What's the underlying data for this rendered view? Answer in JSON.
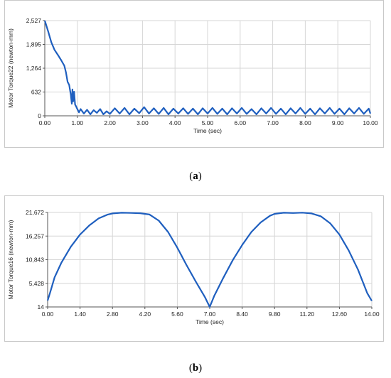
{
  "captions": {
    "a": {
      "open": "(",
      "letter": "a",
      "close": ")"
    },
    "b": {
      "open": "(",
      "letter": "b",
      "close": ")"
    }
  },
  "colors": {
    "line": "#1f5fbf",
    "grid": "#d6d6d6",
    "axis": "#555555"
  },
  "chart_data": [
    {
      "type": "line",
      "title": "",
      "xlabel": "Time (sec)",
      "ylabel": "Motor Torque22 (newton-mm)",
      "xlim": [
        0,
        10
      ],
      "ylim": [
        0,
        2527
      ],
      "x_ticks": [
        "0.00",
        "1.00",
        "2.00",
        "3.00",
        "4.00",
        "5.00",
        "6.00",
        "7.00",
        "8.00",
        "9.00",
        "10.00"
      ],
      "y_ticks": [
        "0",
        "632",
        "1,264",
        "1,895",
        "2,527"
      ],
      "grid": true,
      "x": [
        0.0,
        0.1,
        0.2,
        0.3,
        0.4,
        0.5,
        0.6,
        0.65,
        0.7,
        0.75,
        0.8,
        0.83,
        0.85,
        0.87,
        0.9,
        0.93,
        0.96,
        1.0,
        1.05,
        1.1,
        1.2,
        1.3,
        1.4,
        1.5,
        1.6,
        1.7,
        1.8,
        1.9,
        2.0,
        2.15,
        2.3,
        2.45,
        2.6,
        2.75,
        2.9,
        3.05,
        3.2,
        3.35,
        3.5,
        3.65,
        3.8,
        3.95,
        4.1,
        4.25,
        4.4,
        4.55,
        4.7,
        4.85,
        5.0,
        5.15,
        5.3,
        5.45,
        5.6,
        5.75,
        5.9,
        6.05,
        6.2,
        6.35,
        6.5,
        6.65,
        6.8,
        6.95,
        7.1,
        7.25,
        7.4,
        7.55,
        7.7,
        7.85,
        8.0,
        8.15,
        8.3,
        8.45,
        8.6,
        8.75,
        8.9,
        9.05,
        9.2,
        9.35,
        9.5,
        9.65,
        9.8,
        9.95,
        10.0
      ],
      "series": [
        {
          "values": [
            2527,
            2250,
            1950,
            1750,
            1620,
            1480,
            1330,
            1150,
            900,
            820,
            560,
            320,
            700,
            380,
            640,
            300,
            250,
            180,
            90,
            180,
            60,
            160,
            40,
            150,
            80,
            180,
            40,
            120,
            50,
            200,
            60,
            210,
            40,
            190,
            70,
            230,
            60,
            200,
            50,
            210,
            40,
            190,
            60,
            200,
            50,
            190,
            40,
            200,
            60,
            210,
            50,
            190,
            40,
            200,
            60,
            210,
            50,
            180,
            40,
            200,
            60,
            210,
            50,
            190,
            40,
            200,
            60,
            210,
            50,
            190,
            40,
            200,
            60,
            210,
            50,
            190,
            40,
            200,
            60,
            210,
            50,
            190,
            60
          ]
        }
      ]
    },
    {
      "type": "line",
      "title": "",
      "xlabel": "Time (sec)",
      "ylabel": "Motor Torque16 (newton-mm)",
      "xlim": [
        0,
        14
      ],
      "ylim": [
        14,
        21672
      ],
      "x_ticks": [
        "0.00",
        "1.40",
        "2.80",
        "4.20",
        "5.60",
        "7.00",
        "8.40",
        "9.80",
        "11.20",
        "12.60",
        "14.00"
      ],
      "y_ticks": [
        "14",
        "5,428",
        "10,843",
        "16,257",
        "21,672"
      ],
      "grid": true,
      "x": [
        0.0,
        0.1,
        0.3,
        0.6,
        1.0,
        1.4,
        1.8,
        2.2,
        2.6,
        2.8,
        3.2,
        3.6,
        4.0,
        4.4,
        4.8,
        5.2,
        5.6,
        6.0,
        6.4,
        6.8,
        7.0,
        7.2,
        7.6,
        8.0,
        8.4,
        8.8,
        9.2,
        9.6,
        9.8,
        10.2,
        10.6,
        11.0,
        11.4,
        11.8,
        12.2,
        12.6,
        13.0,
        13.4,
        13.8,
        14.0
      ],
      "series": [
        {
          "values": [
            1500,
            3200,
            6800,
            10200,
            13800,
            16600,
            18700,
            20300,
            21200,
            21450,
            21600,
            21560,
            21500,
            21200,
            19800,
            17200,
            13600,
            9600,
            5800,
            2200,
            14,
            2600,
            6800,
            10800,
            14200,
            17200,
            19400,
            20900,
            21350,
            21600,
            21540,
            21620,
            21450,
            20800,
            19200,
            16600,
            13000,
            8600,
            3200,
            1400
          ]
        }
      ]
    }
  ]
}
